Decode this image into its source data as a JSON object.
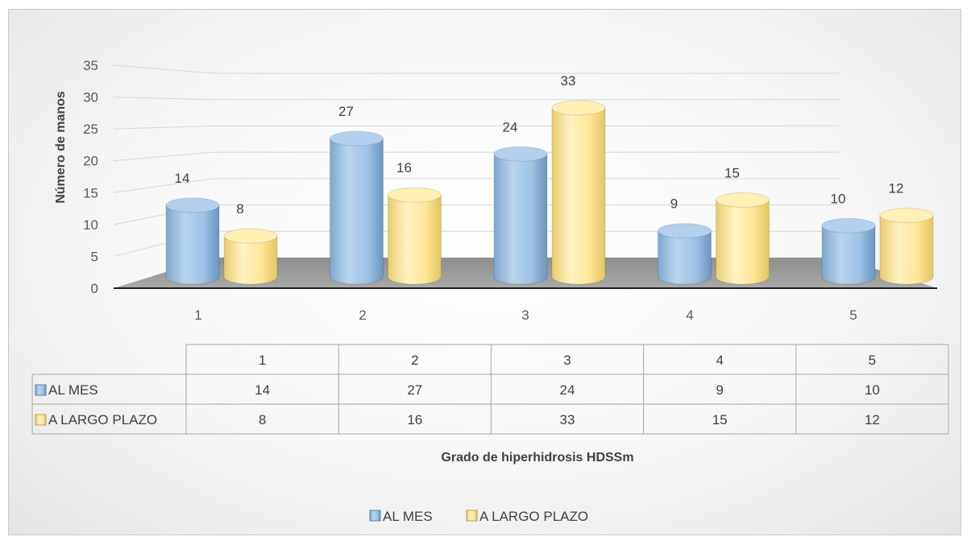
{
  "chart_data": {
    "type": "bar",
    "style": "3d-cylinder",
    "categories": [
      "1",
      "2",
      "3",
      "4",
      "5"
    ],
    "series": [
      {
        "name": "AL MES",
        "values": [
          14,
          27,
          24,
          9,
          10
        ],
        "color": "#9dc3e6"
      },
      {
        "name": "A LARGO PLAZO",
        "values": [
          8,
          16,
          33,
          15,
          12
        ],
        "color": "#ffe699"
      }
    ],
    "title": "",
    "xlabel": "Grado de hiperhidrosis HDSSm",
    "ylabel": "Número de manos",
    "ylim": [
      0,
      35
    ],
    "yticks": [
      0,
      5,
      10,
      15,
      20,
      25,
      30,
      35
    ],
    "grid": true,
    "data_table": true,
    "legend": "bottom"
  }
}
